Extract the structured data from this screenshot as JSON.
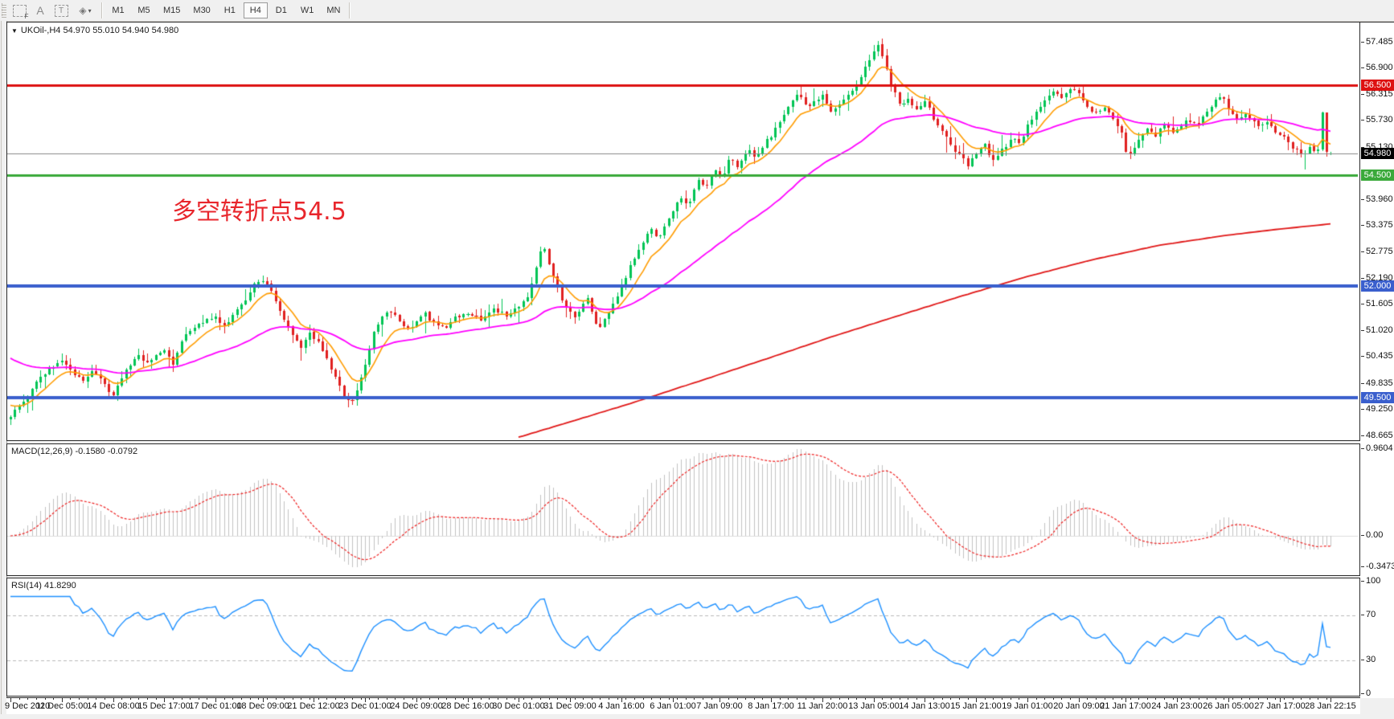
{
  "toolbar": {
    "tools": [
      {
        "name": "fibonacci-grid-icon",
        "label": "F"
      },
      {
        "name": "text-label-icon",
        "label": "A"
      },
      {
        "name": "text-box-icon",
        "label": "T"
      },
      {
        "name": "arrows-icon",
        "label": "◈",
        "caret": "▾"
      }
    ],
    "timeframes": [
      "M1",
      "M5",
      "M15",
      "M30",
      "H1",
      "H4",
      "D1",
      "W1",
      "MN"
    ],
    "active_timeframe": "H4"
  },
  "chart_header": {
    "expander": "▼",
    "symbol": "UKOil-,H4",
    "ohlc": "54.970 55.010 54.940 54.980"
  },
  "annotation": {
    "text": "多空转折点54.5",
    "color": "#e8262c"
  },
  "macd_panel": {
    "label": "MACD(12,26,9)",
    "values": "-0.1580 -0.0792"
  },
  "rsi_panel": {
    "label": "RSI(14)",
    "value": "41.8290"
  },
  "chart_data": {
    "type": "candlestick",
    "symbol": "UKOil-",
    "timeframe": "H4",
    "title": "UKOil-,H4",
    "current_ohlc": {
      "open": 54.97,
      "high": 55.01,
      "low": 54.94,
      "close": 54.98
    },
    "bars": 310,
    "visible_price_range": [
      48.589,
      57.911
    ],
    "colors": {
      "up": "#00c455",
      "down": "#e02020",
      "macd_hist": "#c2c2c2",
      "macd_signal": "#ee2222",
      "rsi_line": "#1e90ff",
      "current_line": "#888888",
      "axis_text": "#111111"
    },
    "price_axis_ticks": [
      57.485,
      56.9,
      56.315,
      55.73,
      55.13,
      53.96,
      53.375,
      52.775,
      52.19,
      51.605,
      51.02,
      50.435,
      49.835,
      49.25,
      48.665
    ],
    "levels": [
      {
        "price": 56.5,
        "label": "56.500",
        "color": "#dd1111",
        "width": 3
      },
      {
        "price": 54.5,
        "label": "54.500",
        "color": "#3aa93a",
        "width": 3
      },
      {
        "price": 52.0,
        "label": "52.000",
        "color": "#3a5fcd",
        "width": 4
      },
      {
        "price": 49.5,
        "label": "49.500",
        "color": "#3a5fcd",
        "width": 4
      }
    ],
    "current_price": {
      "price": 54.98,
      "label": "54.980"
    },
    "moving_averages": [
      {
        "name": "fast-ma",
        "period": 9,
        "color": "#ff9c00",
        "seed": 49.4
      },
      {
        "name": "medium-ma",
        "period": 45,
        "color": "#ff00ff",
        "seed": 50.45
      },
      {
        "name": "slow-ma",
        "color": "#e01717",
        "anchors": [
          [
            0.385,
            48.62
          ],
          [
            0.43,
            49.02
          ],
          [
            0.47,
            49.38
          ],
          [
            0.52,
            49.86
          ],
          [
            0.57,
            50.35
          ],
          [
            0.62,
            50.85
          ],
          [
            0.67,
            51.32
          ],
          [
            0.72,
            51.78
          ],
          [
            0.77,
            52.22
          ],
          [
            0.82,
            52.6
          ],
          [
            0.87,
            52.92
          ],
          [
            0.92,
            53.14
          ],
          [
            0.96,
            53.28
          ],
          [
            1.0,
            53.4
          ]
        ]
      }
    ],
    "price_path_anchors": [
      [
        0.0,
        49.1
      ],
      [
        0.006,
        49.28
      ],
      [
        0.013,
        49.55
      ],
      [
        0.02,
        49.9
      ],
      [
        0.028,
        50.1
      ],
      [
        0.0385,
        50.35
      ],
      [
        0.048,
        50.05
      ],
      [
        0.055,
        49.92
      ],
      [
        0.062,
        50.12
      ],
      [
        0.069,
        49.95
      ],
      [
        0.0769,
        49.48
      ],
      [
        0.082,
        49.8
      ],
      [
        0.088,
        50.18
      ],
      [
        0.096,
        50.45
      ],
      [
        0.104,
        50.28
      ],
      [
        0.1154,
        50.6
      ],
      [
        0.123,
        50.28
      ],
      [
        0.131,
        50.85
      ],
      [
        0.14,
        51.1
      ],
      [
        0.147,
        51.22
      ],
      [
        0.1538,
        51.32
      ],
      [
        0.161,
        51.12
      ],
      [
        0.17,
        51.38
      ],
      [
        0.178,
        51.72
      ],
      [
        0.185,
        52.05
      ],
      [
        0.1923,
        52.18
      ],
      [
        0.199,
        51.78
      ],
      [
        0.206,
        51.35
      ],
      [
        0.213,
        50.92
      ],
      [
        0.22,
        50.62
      ],
      [
        0.226,
        50.95
      ],
      [
        0.2308,
        50.85
      ],
      [
        0.238,
        50.48
      ],
      [
        0.246,
        49.95
      ],
      [
        0.253,
        49.5
      ],
      [
        0.258,
        49.42
      ],
      [
        0.263,
        49.68
      ],
      [
        0.269,
        50.3
      ],
      [
        0.275,
        50.95
      ],
      [
        0.281,
        51.32
      ],
      [
        0.288,
        51.45
      ],
      [
        0.295,
        51.18
      ],
      [
        0.302,
        51.05
      ],
      [
        0.3077,
        51.2
      ],
      [
        0.313,
        51.42
      ],
      [
        0.32,
        51.18
      ],
      [
        0.328,
        51.05
      ],
      [
        0.336,
        51.28
      ],
      [
        0.3462,
        51.42
      ],
      [
        0.356,
        51.28
      ],
      [
        0.366,
        51.48
      ],
      [
        0.375,
        51.35
      ],
      [
        0.3846,
        51.52
      ],
      [
        0.392,
        51.8
      ],
      [
        0.399,
        52.55
      ],
      [
        0.403,
        52.92
      ],
      [
        0.408,
        52.5
      ],
      [
        0.414,
        51.95
      ],
      [
        0.419,
        51.62
      ],
      [
        0.4231,
        51.48
      ],
      [
        0.429,
        51.3
      ],
      [
        0.436,
        51.82
      ],
      [
        0.441,
        51.35
      ],
      [
        0.445,
        50.98
      ],
      [
        0.451,
        51.32
      ],
      [
        0.4615,
        51.88
      ],
      [
        0.469,
        52.42
      ],
      [
        0.477,
        52.88
      ],
      [
        0.484,
        53.28
      ],
      [
        0.491,
        53.08
      ],
      [
        0.5,
        53.6
      ],
      [
        0.507,
        54.02
      ],
      [
        0.514,
        53.82
      ],
      [
        0.521,
        54.42
      ],
      [
        0.527,
        54.18
      ],
      [
        0.533,
        54.62
      ],
      [
        0.5385,
        54.42
      ],
      [
        0.545,
        54.88
      ],
      [
        0.551,
        54.62
      ],
      [
        0.558,
        55.12
      ],
      [
        0.565,
        54.88
      ],
      [
        0.571,
        55.18
      ],
      [
        0.5769,
        55.42
      ],
      [
        0.584,
        55.72
      ],
      [
        0.591,
        56.08
      ],
      [
        0.597,
        56.32
      ],
      [
        0.604,
        55.98
      ],
      [
        0.61,
        56.18
      ],
      [
        0.6154,
        56.3
      ],
      [
        0.622,
        55.92
      ],
      [
        0.629,
        56.08
      ],
      [
        0.637,
        56.35
      ],
      [
        0.644,
        56.68
      ],
      [
        0.65,
        57.05
      ],
      [
        0.6538,
        57.25
      ],
      [
        0.658,
        57.42
      ],
      [
        0.662,
        56.98
      ],
      [
        0.668,
        56.42
      ],
      [
        0.674,
        56.05
      ],
      [
        0.68,
        56.22
      ],
      [
        0.686,
        55.95
      ],
      [
        0.6923,
        56.18
      ],
      [
        0.699,
        55.78
      ],
      [
        0.706,
        55.48
      ],
      [
        0.713,
        55.12
      ],
      [
        0.719,
        54.92
      ],
      [
        0.725,
        54.72
      ],
      [
        0.7308,
        54.95
      ],
      [
        0.737,
        55.22
      ],
      [
        0.744,
        54.82
      ],
      [
        0.751,
        55.05
      ],
      [
        0.758,
        55.32
      ],
      [
        0.764,
        55.18
      ],
      [
        0.7692,
        55.55
      ],
      [
        0.776,
        55.85
      ],
      [
        0.783,
        56.12
      ],
      [
        0.79,
        56.38
      ],
      [
        0.797,
        56.18
      ],
      [
        0.802,
        56.42
      ],
      [
        0.8077,
        56.35
      ],
      [
        0.814,
        56.08
      ],
      [
        0.821,
        55.85
      ],
      [
        0.828,
        56.05
      ],
      [
        0.835,
        55.72
      ],
      [
        0.841,
        55.48
      ],
      [
        0.8462,
        54.82
      ],
      [
        0.85,
        55.08
      ],
      [
        0.856,
        55.35
      ],
      [
        0.862,
        55.55
      ],
      [
        0.868,
        55.38
      ],
      [
        0.874,
        55.65
      ],
      [
        0.88,
        55.48
      ],
      [
        0.8846,
        55.55
      ],
      [
        0.891,
        55.75
      ],
      [
        0.898,
        55.6
      ],
      [
        0.905,
        55.88
      ],
      [
        0.912,
        56.15
      ],
      [
        0.918,
        56.25
      ],
      [
        0.9231,
        55.95
      ],
      [
        0.93,
        55.7
      ],
      [
        0.937,
        55.85
      ],
      [
        0.944,
        55.58
      ],
      [
        0.951,
        55.72
      ],
      [
        0.957,
        55.48
      ],
      [
        0.9615,
        55.42
      ],
      [
        0.967,
        55.22
      ],
      [
        0.973,
        55.08
      ],
      [
        0.979,
        54.98
      ],
      [
        0.985,
        55.12
      ],
      [
        0.99,
        54.95
      ],
      [
        0.9935,
        55.9
      ],
      [
        0.9965,
        55.08
      ],
      [
        1.0,
        54.98
      ]
    ],
    "macd": {
      "params": "12,26,9",
      "main_value": -0.158,
      "signal_value": -0.0792,
      "scale": {
        "top": 1.012,
        "bottom": -0.417
      },
      "axis_ticks": [
        {
          "label": "0.9604",
          "value": 0.9604
        },
        {
          "label": "0.00",
          "value": 0
        },
        {
          "label": "-0.3473",
          "value": -0.3473
        }
      ]
    },
    "rsi": {
      "period": 14,
      "value": 41.829,
      "axis_ticks": [
        {
          "label": "100",
          "value": 100
        },
        {
          "label": "70",
          "value": 70
        },
        {
          "label": "30",
          "value": 30
        },
        {
          "label": "0",
          "value": 0
        }
      ],
      "level_lines": [
        70,
        30
      ]
    },
    "time_labels": [
      "9 Dec 2020",
      "11 Dec 05:00",
      "14 Dec 08:00",
      "15 Dec 17:00",
      "17 Dec 01:00",
      "18 Dec 09:00",
      "21 Dec 12:00",
      "23 Dec 01:00",
      "24 Dec 09:00",
      "28 Dec 16:00",
      "30 Dec 01:00",
      "31 Dec 09:00",
      "4 Jan 16:00",
      "6 Jan 01:00",
      "7 Jan 09:00",
      "8 Jan 17:00",
      "11 Jan 20:00",
      "13 Jan 05:00",
      "14 Jan 13:00",
      "15 Jan 21:00",
      "19 Jan 01:00",
      "20 Jan 09:00",
      "21 Jan 17:00",
      "24 Jan 23:00",
      "26 Jan 05:00",
      "27 Jan 17:00",
      "28 Jan 22:15"
    ]
  }
}
